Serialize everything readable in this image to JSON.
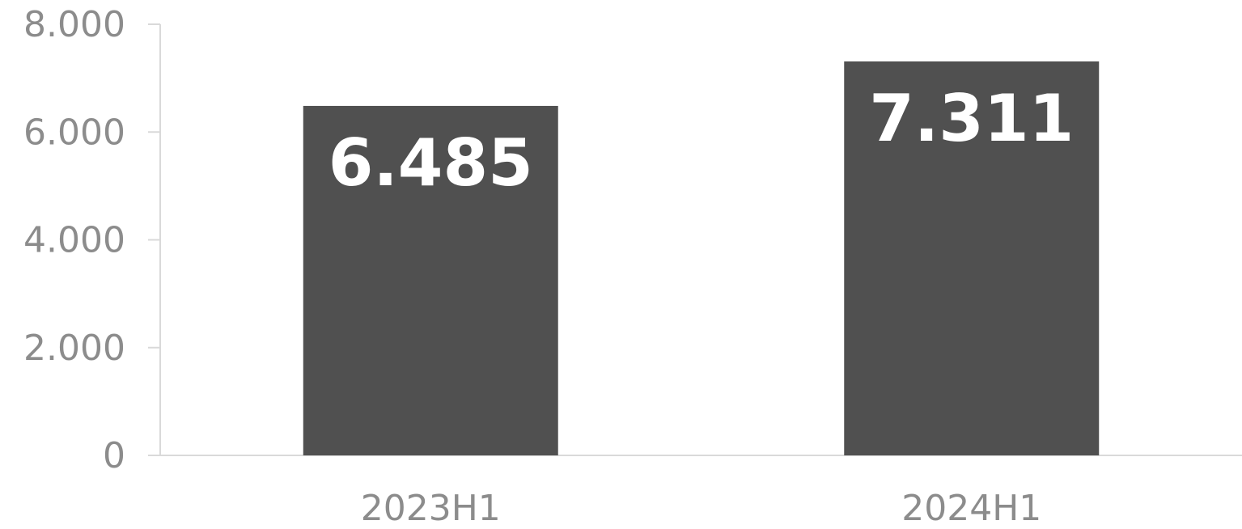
{
  "chart_data": {
    "type": "bar",
    "categories": [
      "2023H1",
      "2024H1"
    ],
    "values": [
      6485,
      7311
    ],
    "data_labels": [
      "6.485",
      "7.311"
    ],
    "yticks": [
      {
        "value": 0,
        "label": "0"
      },
      {
        "value": 2000,
        "label": "2.000"
      },
      {
        "value": 4000,
        "label": "4.000"
      },
      {
        "value": 6000,
        "label": "6.000"
      },
      {
        "value": 8000,
        "label": "8.000"
      }
    ],
    "ylim": [
      0,
      8000
    ],
    "title": "",
    "xlabel": "",
    "ylabel": "",
    "grid": false,
    "legend": "none",
    "bar_color": "#505050",
    "axis_color": "#d9d9d9",
    "label_color": "#8c8c8c",
    "data_label_color": "#ffffff"
  }
}
